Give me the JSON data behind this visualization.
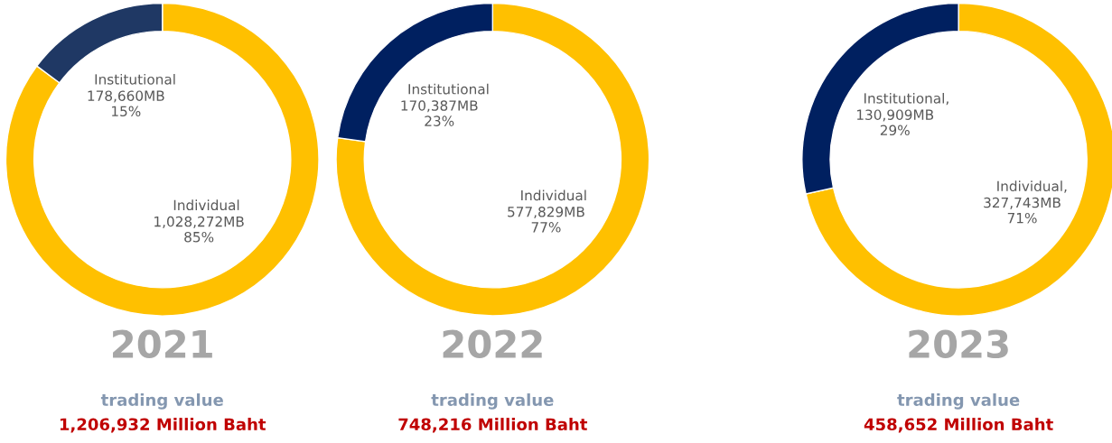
{
  "chart_data": [
    {
      "type": "donut",
      "title": "2021",
      "categories": [
        "Individual",
        "Institutional"
      ],
      "values": [
        1028272,
        178660
      ],
      "colors": [
        "#ffc000",
        "#1f3864"
      ],
      "value_labels": [
        "1,028,272MB\n85%",
        "178,660MB\n15%"
      ],
      "annotations": [
        "trading value",
        "1,206,932 Million Baht"
      ]
    },
    {
      "type": "donut",
      "title": "2022",
      "categories": [
        "Individual",
        "Institutional"
      ],
      "values": [
        577829,
        170387
      ],
      "colors": [
        "#ffc000",
        "#002060"
      ],
      "value_labels": [
        "577,829MB\n77%",
        "170,387MB\n23%"
      ],
      "annotations": [
        "trading value",
        "748,216 Million Baht"
      ]
    },
    {
      "type": "donut",
      "title": "2023",
      "categories": [
        "Individual",
        "Institutional"
      ],
      "values": [
        327743,
        130909
      ],
      "colors": [
        "#ffc000",
        "#002060"
      ],
      "value_labels": [
        ",\n327,743MB\n71%",
        ",\n130,909MB\n29%"
      ],
      "annotations": [
        "trading value",
        "458,652 Million Baht"
      ]
    }
  ]
}
